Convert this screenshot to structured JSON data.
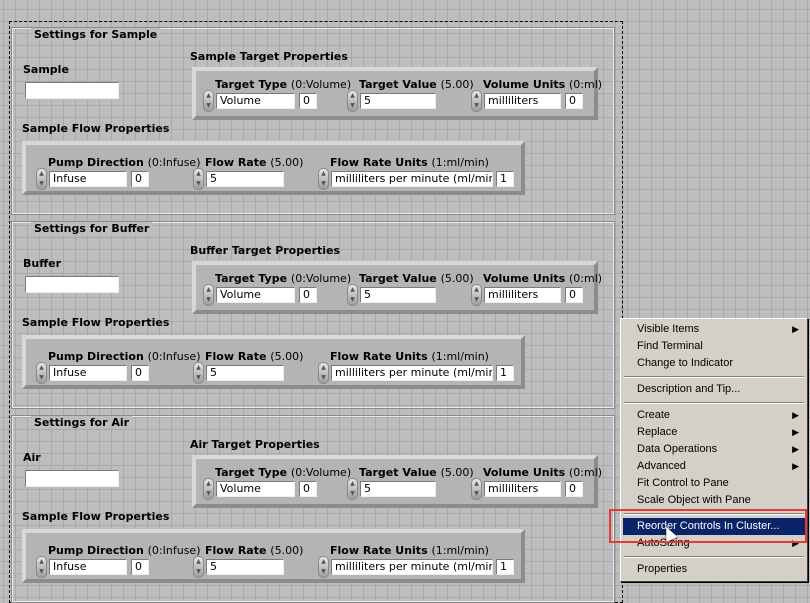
{
  "sections": [
    {
      "title": "Settings for Sample",
      "name_label": "Sample",
      "name_value": "",
      "target_title": "Sample Target Properties",
      "flow_title": "Sample Flow Properties",
      "target_type": {
        "label": "Target Type",
        "hint": "(0:Volume)",
        "value": "Volume",
        "index": "0"
      },
      "target_value": {
        "label": "Target Value",
        "hint": "(5.00)",
        "value": "5"
      },
      "volume_units": {
        "label": "Volume Units",
        "hint": "(0:ml)",
        "value": "milliliters",
        "index": "0"
      },
      "pump_direction": {
        "label": "Pump Direction",
        "hint": "(0:Infuse)",
        "value": "Infuse",
        "index": "0"
      },
      "flow_rate": {
        "label": "Flow Rate",
        "hint": "(5.00)",
        "value": "5"
      },
      "flow_rate_units": {
        "label": "Flow Rate Units",
        "hint": "(1:ml/min)",
        "value": "milliliters per minute (ml/min)",
        "index": "1"
      }
    },
    {
      "title": "Settings for Buffer",
      "name_label": "Buffer",
      "name_value": "",
      "target_title": "Buffer Target Properties",
      "flow_title": "Sample Flow Properties",
      "target_type": {
        "label": "Target Type",
        "hint": "(0:Volume)",
        "value": "Volume",
        "index": "0"
      },
      "target_value": {
        "label": "Target Value",
        "hint": "(5.00)",
        "value": "5"
      },
      "volume_units": {
        "label": "Volume Units",
        "hint": "(0:ml)",
        "value": "milliliters",
        "index": "0"
      },
      "pump_direction": {
        "label": "Pump Direction",
        "hint": "(0:Infuse)",
        "value": "Infuse",
        "index": "0"
      },
      "flow_rate": {
        "label": "Flow Rate",
        "hint": "(5.00)",
        "value": "5"
      },
      "flow_rate_units": {
        "label": "Flow Rate Units",
        "hint": "(1:ml/min)",
        "value": "milliliters per minute (ml/min)",
        "index": "1"
      }
    },
    {
      "title": "Settings for Air",
      "name_label": "Air",
      "name_value": "",
      "target_title": "Air Target Properties",
      "flow_title": "Sample Flow Properties",
      "target_type": {
        "label": "Target Type",
        "hint": "(0:Volume)",
        "value": "Volume",
        "index": "0"
      },
      "target_value": {
        "label": "Target Value",
        "hint": "(5.00)",
        "value": "5"
      },
      "volume_units": {
        "label": "Volume Units",
        "hint": "(0:ml)",
        "value": "milliliters",
        "index": "0"
      },
      "pump_direction": {
        "label": "Pump Direction",
        "hint": "(0:Infuse)",
        "value": "Infuse",
        "index": "0"
      },
      "flow_rate": {
        "label": "Flow Rate",
        "hint": "(5.00)",
        "value": "5"
      },
      "flow_rate_units": {
        "label": "Flow Rate Units",
        "hint": "(1:ml/min)",
        "value": "milliliters per minute (ml/min)",
        "index": "1"
      }
    }
  ],
  "context_menu": {
    "items": [
      {
        "label": "Visible Items",
        "submenu": true
      },
      {
        "label": "Find Terminal"
      },
      {
        "label": "Change to Indicator"
      },
      {
        "label": "Description and Tip..."
      },
      {
        "label": "Create",
        "submenu": true
      },
      {
        "label": "Replace",
        "submenu": true
      },
      {
        "label": "Data Operations",
        "submenu": true
      },
      {
        "label": "Advanced",
        "submenu": true
      },
      {
        "label": "Fit Control to Pane"
      },
      {
        "label": "Scale Object with Pane"
      },
      {
        "label": "Reorder Controls In Cluster...",
        "highlighted": true
      },
      {
        "label": "AutoSizing",
        "submenu": true
      },
      {
        "label": "Properties"
      }
    ],
    "highlight_color": "#0a246a",
    "annotation_color": "#e43a3a"
  }
}
